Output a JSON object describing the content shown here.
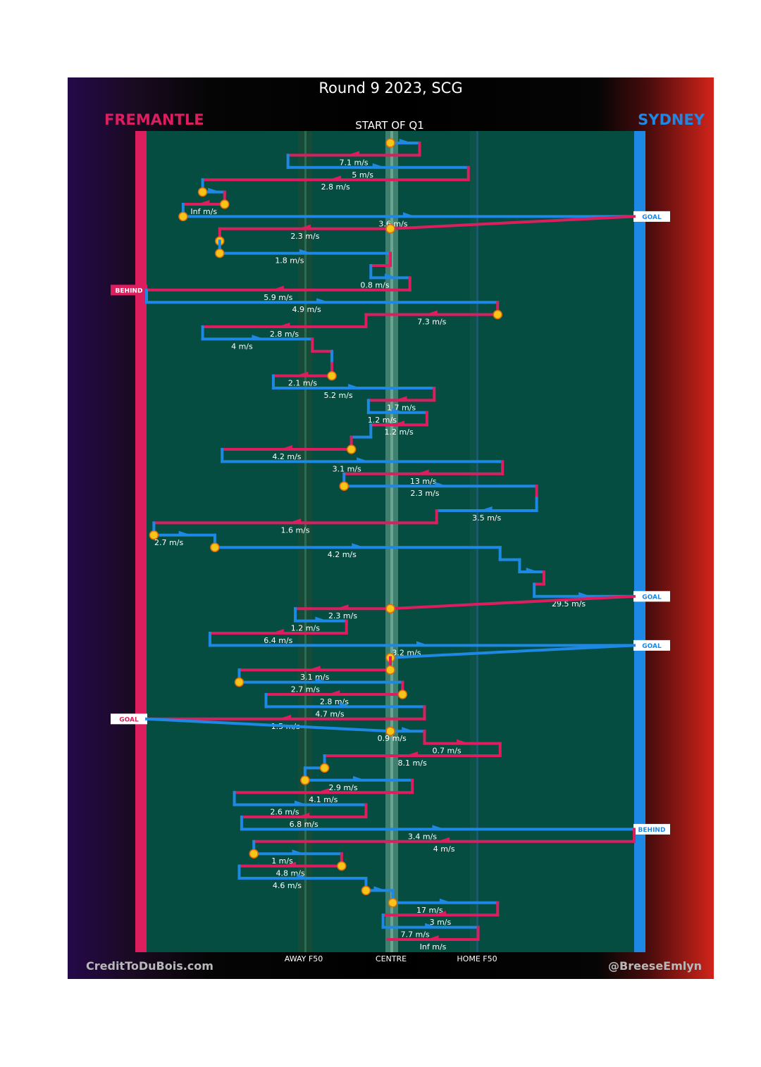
{
  "header": {
    "title": "Round 9 2023, SCG",
    "away_team": "FREMANTLE",
    "home_team": "SYDNEY",
    "quarter": "START OF Q1"
  },
  "footer": {
    "credit_left": "CreditToDuBois.com",
    "credit_right": "@BreeseEmlyn",
    "away_f50": "AWAY F50",
    "centre": "CENTRE",
    "home_f50": "HOME F50"
  },
  "colors": {
    "fremantle": "#dc1e5f",
    "sydney": "#1e88e5",
    "field": "#044d40",
    "marker": "#f5c518"
  },
  "chart_data": {
    "type": "line",
    "xlabel": "",
    "ylabel": "",
    "x_ticks": [
      "AWAY F50",
      "CENTRE",
      "HOME F50"
    ],
    "grid": false,
    "legend": "team names at top-left (FREMANTLE) and top-right (SYDNEY)",
    "chains": [
      {
        "team": "SYD",
        "from": 0.0,
        "to": 0.12,
        "label": "",
        "start": true,
        "end": ""
      },
      {
        "team": "FRE",
        "from": 0.12,
        "to": -0.42,
        "label": "7.1 m/s",
        "start": false,
        "end": ""
      },
      {
        "team": "SYD",
        "from": -0.42,
        "to": 0.32,
        "label": "5 m/s",
        "start": false,
        "end": ""
      },
      {
        "team": "FRE",
        "from": 0.32,
        "to": -0.77,
        "label": "2.8 m/s",
        "start": false,
        "end": ""
      },
      {
        "team": "SYD",
        "from": -0.77,
        "to": -0.68,
        "label": "",
        "start": true,
        "end": ""
      },
      {
        "team": "FRE",
        "from": -0.68,
        "to": -0.85,
        "label": "Inf m/s",
        "start": true,
        "end": ""
      },
      {
        "team": "SYD",
        "from": -0.85,
        "to": 1.0,
        "label": "3.6 m/s",
        "start": true,
        "end": "GOAL"
      },
      {
        "team": "FRE",
        "from": 0.0,
        "to": -0.7,
        "label": "2.3 m/s",
        "start": true,
        "end": ""
      },
      {
        "team": "FRE",
        "from": -0.7,
        "to": -0.7,
        "label": "",
        "start": true,
        "end": ""
      },
      {
        "team": "SYD",
        "from": -0.7,
        "to": 0.0,
        "label": "1.8 m/s",
        "start": true,
        "end": ""
      },
      {
        "team": "FRE",
        "from": 0.0,
        "to": -0.08,
        "label": "",
        "start": false,
        "end": ""
      },
      {
        "team": "SYD",
        "from": -0.08,
        "to": 0.08,
        "label": "0.8 m/s",
        "start": false,
        "end": ""
      },
      {
        "team": "FRE",
        "from": 0.08,
        "to": -1.0,
        "label": "5.9 m/s",
        "start": false,
        "end": "BEHIND"
      },
      {
        "team": "SYD",
        "from": -1.0,
        "to": 0.44,
        "label": "4.9 m/s",
        "start": false,
        "end": ""
      },
      {
        "team": "FRE",
        "from": 0.44,
        "to": -0.1,
        "label": "7.3 m/s",
        "start": true,
        "end": ""
      },
      {
        "team": "FRE",
        "from": -0.1,
        "to": -0.77,
        "label": "2.8 m/s",
        "start": false,
        "end": ""
      },
      {
        "team": "SYD",
        "from": -0.77,
        "to": -0.32,
        "label": "4 m/s",
        "start": false,
        "end": ""
      },
      {
        "team": "FRE",
        "from": -0.32,
        "to": -0.24,
        "label": "",
        "start": false,
        "end": ""
      },
      {
        "team": "SYD",
        "from": -0.24,
        "to": -0.24,
        "label": "",
        "start": false,
        "end": ""
      },
      {
        "team": "FRE",
        "from": -0.24,
        "to": -0.48,
        "label": "2.1 m/s",
        "start": true,
        "end": ""
      },
      {
        "team": "SYD",
        "from": -0.48,
        "to": 0.18,
        "label": "5.2 m/s",
        "start": false,
        "end": ""
      },
      {
        "team": "FRE",
        "from": 0.18,
        "to": -0.09,
        "label": "1.7 m/s",
        "start": false,
        "end": ""
      },
      {
        "team": "SYD",
        "from": -0.09,
        "to": 0.15,
        "label": "1.2 m/s",
        "start": false,
        "end": ""
      },
      {
        "team": "FRE",
        "from": 0.15,
        "to": -0.08,
        "label": "1.2 m/s",
        "start": false,
        "end": ""
      },
      {
        "team": "SYD",
        "from": -0.08,
        "to": -0.16,
        "label": "",
        "start": false,
        "end": ""
      },
      {
        "team": "FRE",
        "from": -0.16,
        "to": -0.69,
        "label": "4.2 m/s",
        "start": true,
        "end": ""
      },
      {
        "team": "SYD",
        "from": -0.69,
        "to": 0.46,
        "label": "3.1 m/s",
        "start": false,
        "end": ""
      },
      {
        "team": "FRE",
        "from": 0.46,
        "to": -0.19,
        "label": "13 m/s",
        "start": false,
        "end": ""
      },
      {
        "team": "SYD",
        "from": -0.19,
        "to": 0.6,
        "label": "2.3 m/s",
        "start": true,
        "end": ""
      },
      {
        "team": "FRE",
        "from": 0.6,
        "to": 0.6,
        "label": "",
        "start": false,
        "end": ""
      },
      {
        "team": "SYD",
        "from": 0.6,
        "to": 0.19,
        "label": "3.5 m/s",
        "start": false,
        "end": ""
      },
      {
        "team": "FRE",
        "from": 0.19,
        "to": -0.97,
        "label": "1.6 m/s",
        "start": false,
        "end": ""
      },
      {
        "team": "SYD",
        "from": -0.97,
        "to": -0.72,
        "label": "2.7 m/s",
        "start": true,
        "end": ""
      },
      {
        "team": "SYD",
        "from": -0.72,
        "to": 0.45,
        "label": "4.2 m/s",
        "start": true,
        "end": ""
      },
      {
        "team": "SYD",
        "from": 0.45,
        "to": 0.53,
        "label": "",
        "start": false,
        "end": ""
      },
      {
        "team": "SYD",
        "from": 0.53,
        "to": 0.63,
        "label": "",
        "start": false,
        "end": ""
      },
      {
        "team": "FRE",
        "from": 0.63,
        "to": 0.59,
        "label": "",
        "start": false,
        "end": ""
      },
      {
        "team": "SYD",
        "from": 0.59,
        "to": 1.0,
        "label": "29.5 m/s",
        "start": false,
        "end": "GOAL"
      },
      {
        "team": "FRE",
        "from": 0.0,
        "to": -0.39,
        "label": "2.3 m/s",
        "start": true,
        "end": ""
      },
      {
        "team": "SYD",
        "from": -0.39,
        "to": -0.18,
        "label": "1.2 m/s",
        "start": false,
        "end": ""
      },
      {
        "team": "FRE",
        "from": -0.18,
        "to": -0.74,
        "label": "6.4 m/s",
        "start": false,
        "end": ""
      },
      {
        "team": "SYD",
        "from": -0.74,
        "to": 1.0,
        "label": "3.2 m/s",
        "start": false,
        "end": "GOAL"
      },
      {
        "team": "SYD",
        "from": 0.0,
        "to": 0.0,
        "label": "",
        "start": true,
        "end": ""
      },
      {
        "team": "FRE",
        "from": 0.0,
        "to": -0.62,
        "label": "3.1 m/s",
        "start": true,
        "end": ""
      },
      {
        "team": "SYD",
        "from": -0.62,
        "to": 0.05,
        "label": "2.7 m/s",
        "start": true,
        "end": ""
      },
      {
        "team": "FRE",
        "from": 0.05,
        "to": -0.51,
        "label": "2.8 m/s",
        "start": true,
        "end": ""
      },
      {
        "team": "SYD",
        "from": -0.51,
        "to": 0.14,
        "label": "4.7 m/s",
        "start": false,
        "end": ""
      },
      {
        "team": "FRE",
        "from": 0.14,
        "to": -1.0,
        "label": "1.5 m/s",
        "start": false,
        "end": "GOAL"
      },
      {
        "team": "SYD",
        "from": 0.0,
        "to": 0.14,
        "label": "0.9 m/s",
        "start": true,
        "end": ""
      },
      {
        "team": "FRE",
        "from": 0.14,
        "to": 0.45,
        "label": "0.7 m/s",
        "start": false,
        "end": ""
      },
      {
        "team": "FRE",
        "from": 0.45,
        "to": -0.27,
        "label": "8.1 m/s",
        "start": false,
        "end": ""
      },
      {
        "team": "SYD",
        "from": -0.27,
        "to": -0.35,
        "label": "",
        "start": true,
        "end": ""
      },
      {
        "team": "SYD",
        "from": -0.35,
        "to": 0.09,
        "label": "2.9 m/s",
        "start": true,
        "end": ""
      },
      {
        "team": "FRE",
        "from": 0.09,
        "to": -0.64,
        "label": "4.1 m/s",
        "start": false,
        "end": ""
      },
      {
        "team": "SYD",
        "from": -0.64,
        "to": -0.1,
        "label": "2.6 m/s",
        "start": false,
        "end": ""
      },
      {
        "team": "FRE",
        "from": -0.1,
        "to": -0.61,
        "label": "6.8 m/s",
        "start": false,
        "end": ""
      },
      {
        "team": "SYD",
        "from": -0.61,
        "to": 1.0,
        "label": "3.4 m/s",
        "start": false,
        "end": "BEHIND"
      },
      {
        "team": "FRE",
        "from": 1.0,
        "to": -0.56,
        "label": "4 m/s",
        "start": false,
        "end": ""
      },
      {
        "team": "SYD",
        "from": -0.56,
        "to": -0.2,
        "label": "1 m/s",
        "start": true,
        "end": ""
      },
      {
        "team": "FRE",
        "from": -0.2,
        "to": -0.62,
        "label": "4.8 m/s",
        "start": true,
        "end": ""
      },
      {
        "team": "SYD",
        "from": -0.62,
        "to": -0.1,
        "label": "4.6 m/s",
        "start": false,
        "end": ""
      },
      {
        "team": "SYD",
        "from": -0.1,
        "to": 0.01,
        "label": "",
        "start": true,
        "end": ""
      },
      {
        "team": "SYD",
        "from": 0.01,
        "to": 0.44,
        "label": "17 m/s",
        "start": true,
        "end": ""
      },
      {
        "team": "FRE",
        "from": 0.44,
        "to": -0.03,
        "label": "3 m/s",
        "start": false,
        "end": ""
      },
      {
        "team": "SYD",
        "from": -0.03,
        "to": 0.36,
        "label": "7.7 m/s",
        "start": false,
        "end": ""
      },
      {
        "team": "FRE",
        "from": 0.36,
        "to": -0.01,
        "label": "Inf m/s",
        "start": false,
        "end": ""
      }
    ]
  }
}
